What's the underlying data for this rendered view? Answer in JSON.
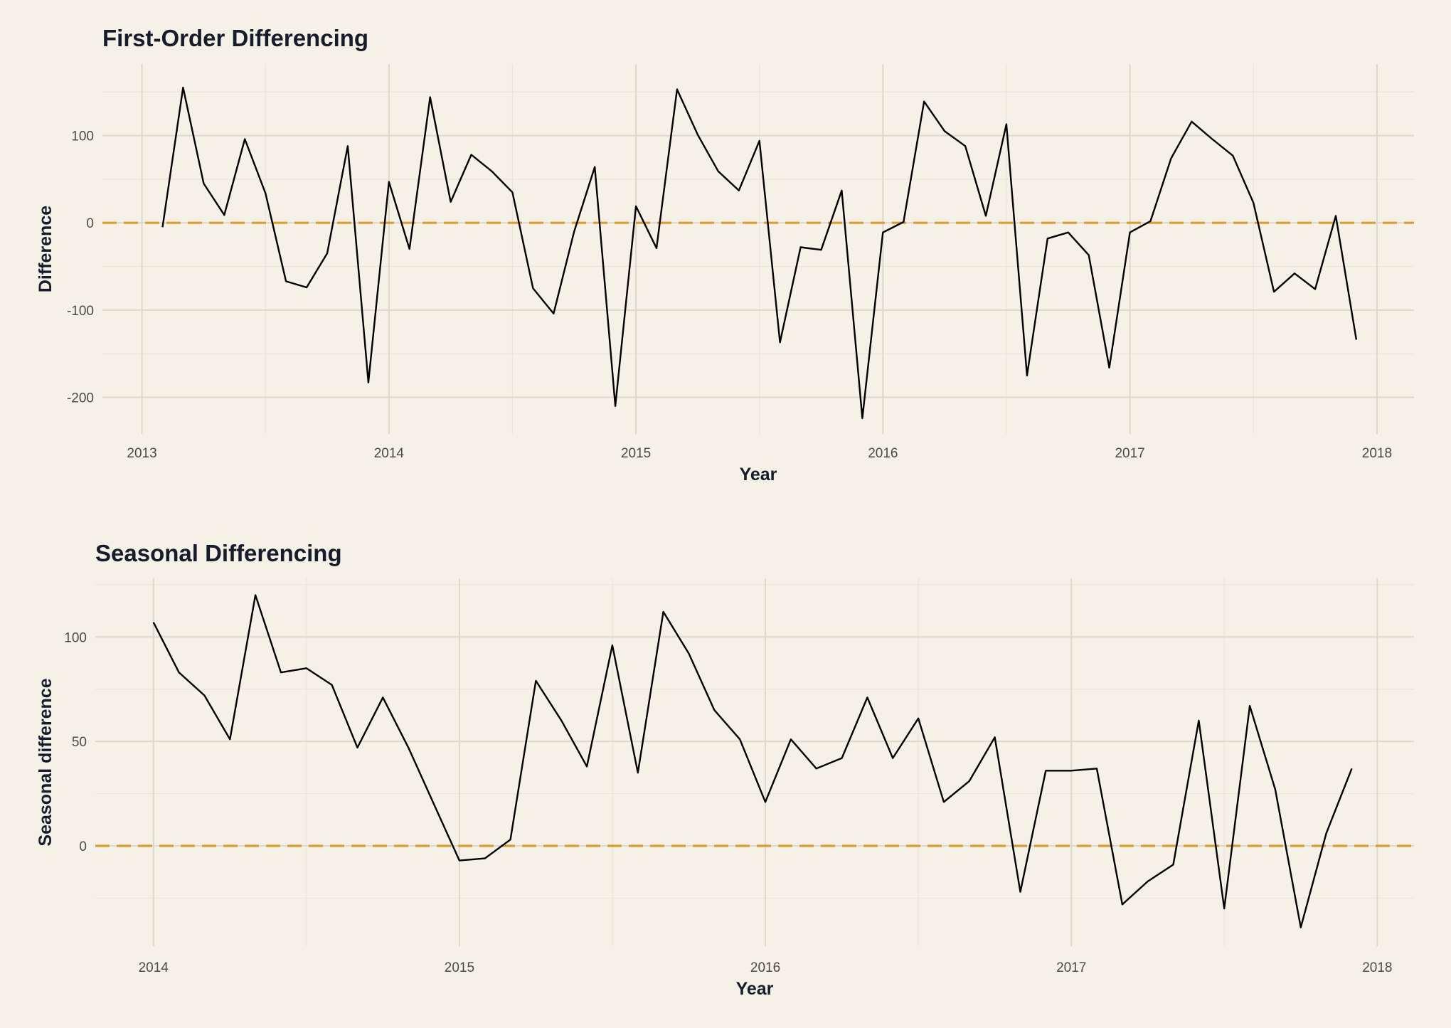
{
  "colors": {
    "background": "#f6f1e6",
    "line": "#000000",
    "reference": "#dc9b35",
    "text": "#161c2b"
  },
  "chart_data": [
    {
      "type": "line",
      "title": "First-Order Differencing",
      "xlabel": "Year",
      "ylabel": "Difference",
      "xlim": [
        2012.84,
        2018.15
      ],
      "ylim": [
        -242,
        182
      ],
      "x_ticks": [
        2013,
        2014,
        2015,
        2016,
        2017,
        2018
      ],
      "x_tick_labels": [
        "2013",
        "2014",
        "2015",
        "2016",
        "2017",
        "2018"
      ],
      "y_ticks": [
        -200,
        -100,
        0,
        100
      ],
      "y_tick_labels": [
        "-200",
        "-100",
        "0",
        "100"
      ],
      "grid": true,
      "reference_line": {
        "y": 0,
        "style": "dashed"
      },
      "x_start": 2013.0833,
      "x_step": 0.08333,
      "series": [
        {
          "values": [
            -5,
            155,
            45,
            9,
            96,
            34,
            -67,
            -74,
            -35,
            88,
            -183,
            47,
            -30,
            144,
            24,
            78,
            59,
            35,
            -75,
            -104,
            -10,
            64,
            -210,
            19,
            -29,
            153,
            101,
            59,
            37,
            94,
            -137,
            -28,
            -31,
            37,
            -224,
            -11,
            1,
            139,
            105,
            88,
            8,
            113,
            -175,
            -18,
            -11,
            -37,
            -166,
            -11,
            2,
            74,
            116,
            96,
            77,
            23,
            -79,
            -58,
            -76,
            8,
            -134
          ]
        }
      ]
    },
    {
      "type": "line",
      "title": "Seasonal Differencing",
      "xlabel": "Year",
      "ylabel": "Seasonal difference",
      "xlim": [
        2013.81,
        2018.12
      ],
      "ylim": [
        -48,
        128
      ],
      "x_ticks": [
        2014,
        2015,
        2016,
        2017,
        2018
      ],
      "x_tick_labels": [
        "2014",
        "2015",
        "2016",
        "2017",
        "2018"
      ],
      "y_ticks": [
        0,
        50,
        100
      ],
      "y_tick_labels": [
        "0",
        "50",
        "100"
      ],
      "grid": true,
      "reference_line": {
        "y": 0,
        "style": "dashed"
      },
      "x_start": 2014.0,
      "x_step": 0.08333,
      "series": [
        {
          "values": [
            107,
            83,
            72,
            51,
            120,
            83,
            85,
            77,
            47,
            71,
            47,
            20,
            -7,
            -6,
            3,
            79,
            60,
            38,
            96,
            35,
            112,
            92,
            65,
            51,
            21,
            51,
            37,
            42,
            71,
            42,
            61,
            21,
            31,
            52,
            -22,
            36,
            36,
            37,
            -28,
            -17,
            -9,
            60,
            -30,
            67,
            27,
            -39,
            6,
            37
          ]
        }
      ]
    }
  ]
}
